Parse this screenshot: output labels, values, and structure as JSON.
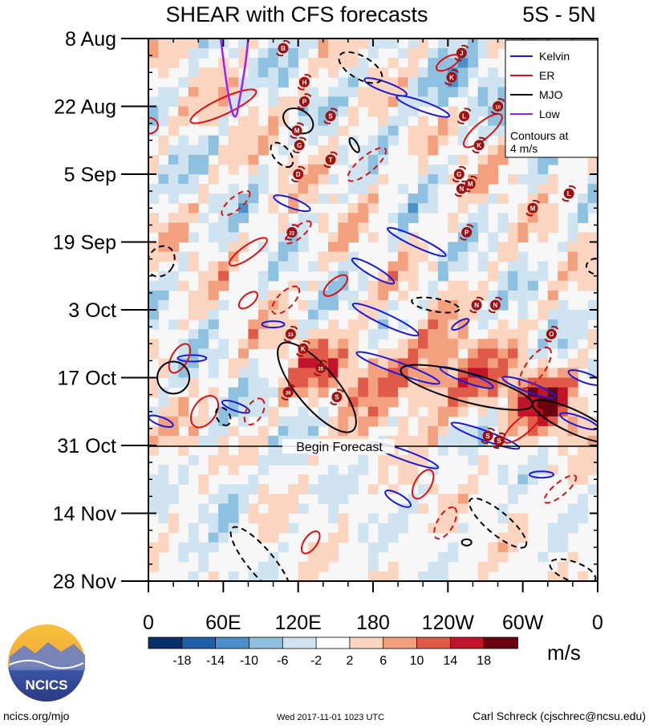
{
  "title": "SHEAR with CFS forecasts",
  "region": "5S - 5N",
  "forecast_label": "Begin Forecast",
  "footer": {
    "url": "ncics.org/mjo",
    "timestamp": "Wed 2017-11-01 1023 UTC",
    "author": "Carl Schreck (cjschrec@ncsu.edu)"
  },
  "logo_text": "NCICS",
  "colors": {
    "kelvin": "#1a1adc",
    "er": "#e01010",
    "mjo": "#000000",
    "low": "#a020f0"
  },
  "chart_data": {
    "type": "heatmap",
    "title": "SHEAR with CFS forecasts",
    "x_ticks": [
      "0",
      "60E",
      "120E",
      "180",
      "120W",
      "60W",
      "0"
    ],
    "x_tick_values": [
      0,
      60,
      120,
      180,
      240,
      300,
      360
    ],
    "x_range": [
      0,
      360
    ],
    "y_ticks": [
      "8 Aug",
      "22 Aug",
      "5 Sep",
      "19 Sep",
      "3 Oct",
      "17 Oct",
      "31 Oct",
      "14 Nov",
      "28 Nov"
    ],
    "y_range_days": [
      0,
      112
    ],
    "forecast_start_day": 84,
    "legend": {
      "entries": [
        {
          "name": "Kelvin",
          "color": "#1a1adc"
        },
        {
          "name": "ER",
          "color": "#e01010"
        },
        {
          "name": "MJO",
          "color": "#000000"
        },
        {
          "name": "Low",
          "color": "#a020f0"
        }
      ],
      "note": "Contours at 4 m/s"
    },
    "colorbar": {
      "unit": "m/s",
      "labels": [
        "-18",
        "-14",
        "-10",
        "-6",
        "-2",
        "2",
        "6",
        "10",
        "14",
        "18"
      ],
      "colors": [
        "#08306b",
        "#1f5fa8",
        "#4a8fc8",
        "#8ec0e0",
        "#cfe4f0",
        "#ffffff",
        "#fcd5c0",
        "#f3a07e",
        "#e05a48",
        "#c0142a",
        "#6b0010"
      ]
    },
    "storms": [
      {
        "label": "B",
        "lon": 108,
        "day": 2
      },
      {
        "label": "J",
        "lon": 251,
        "day": 3
      },
      {
        "label": "K",
        "lon": 243,
        "day": 8
      },
      {
        "label": "H",
        "lon": 125,
        "day": 9
      },
      {
        "label": "P",
        "lon": 125,
        "day": 13
      },
      {
        "label": "S",
        "lon": 146,
        "day": 16
      },
      {
        "label": "M",
        "lon": 119,
        "day": 19
      },
      {
        "label": "G",
        "lon": 121,
        "day": 22
      },
      {
        "label": "L",
        "lon": 253,
        "day": 16
      },
      {
        "label": "10",
        "lon": 280,
        "day": 14
      },
      {
        "label": "K",
        "lon": 265,
        "day": 22
      },
      {
        "label": "J",
        "lon": 315,
        "day": 22
      },
      {
        "label": "T",
        "lon": 146,
        "day": 25
      },
      {
        "label": "D",
        "lon": 120,
        "day": 28
      },
      {
        "label": "G",
        "lon": 249,
        "day": 28
      },
      {
        "label": "N",
        "lon": 251,
        "day": 31
      },
      {
        "label": "M",
        "lon": 258,
        "day": 30
      },
      {
        "label": "L",
        "lon": 337,
        "day": 32
      },
      {
        "label": "M",
        "lon": 308,
        "day": 35
      },
      {
        "label": "22",
        "lon": 115,
        "day": 40
      },
      {
        "label": "P",
        "lon": 255,
        "day": 40
      },
      {
        "label": "N",
        "lon": 263,
        "day": 55
      },
      {
        "label": "N",
        "lon": 278,
        "day": 55
      },
      {
        "label": "23",
        "lon": 114,
        "day": 61
      },
      {
        "label": "O",
        "lon": 323,
        "day": 61
      },
      {
        "label": "K",
        "lon": 124,
        "day": 64
      },
      {
        "label": "25",
        "lon": 138,
        "day": 68
      },
      {
        "label": "26",
        "lon": 112,
        "day": 73
      },
      {
        "label": "S",
        "lon": 151,
        "day": 74
      },
      {
        "label": "S",
        "lon": 272,
        "day": 82
      },
      {
        "label": "S",
        "lon": 281,
        "day": 83
      }
    ]
  }
}
